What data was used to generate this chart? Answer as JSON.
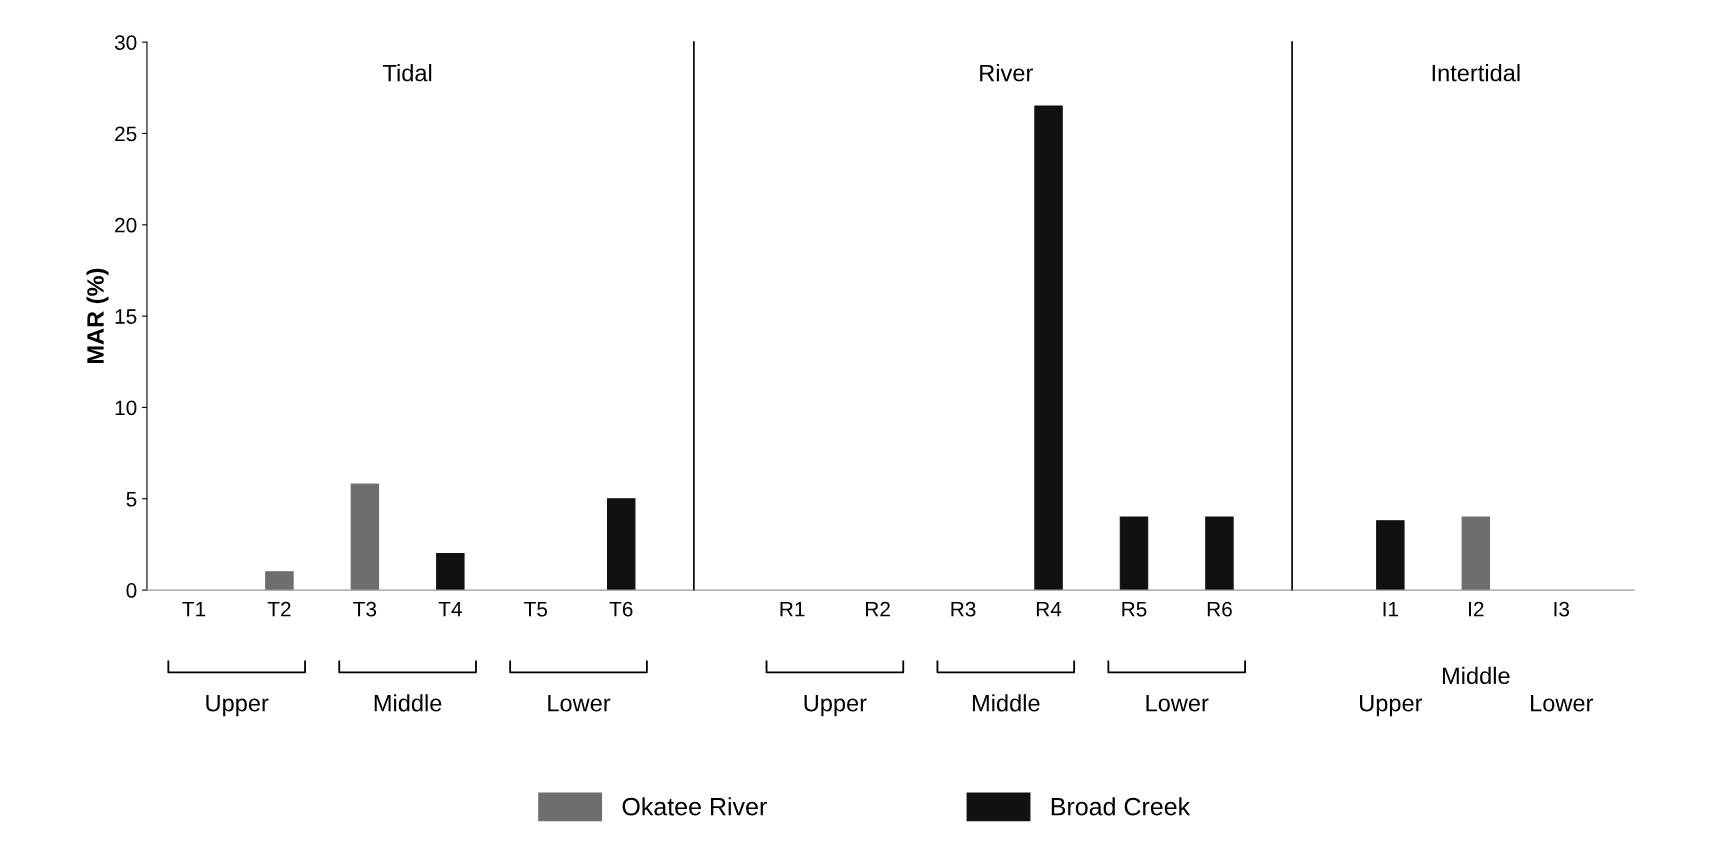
{
  "chart_data": [
    {
      "type": "bar",
      "title": "Tidal",
      "ylabel": "MAR (%)",
      "categories": [
        "T1",
        "T2",
        "T3",
        "T4",
        "T5",
        "T6"
      ],
      "series": [
        {
          "name": "Okatee River",
          "color": "#6e6e6e",
          "values": [
            null,
            1,
            5.8,
            null,
            null,
            null
          ]
        },
        {
          "name": "Broad Creek",
          "color": "#111111",
          "values": [
            null,
            null,
            null,
            2,
            null,
            5
          ]
        }
      ],
      "ylim": [
        0,
        30
      ],
      "yticks": [
        0,
        5,
        10,
        15,
        20,
        25,
        30
      ],
      "annotations": [
        "Upper",
        "Middle",
        "Lower"
      ],
      "legend": "bottom"
    },
    {
      "type": "bar",
      "title": "River",
      "categories": [
        "R1",
        "R2",
        "R3",
        "R4",
        "R5",
        "R6"
      ],
      "series": [
        {
          "color": "#111111",
          "values": [
            null,
            null,
            null,
            26.5,
            4,
            4
          ]
        }
      ],
      "ylim": [
        0,
        30
      ],
      "tick_labels": "x",
      "annotations": [
        "Upper",
        "Middle",
        "Lower"
      ]
    },
    {
      "type": "bar",
      "title": "Intertidal",
      "categories": [
        "I1",
        "I2",
        "I3"
      ],
      "series": [
        {
          "color": "#6e6e6e",
          "values": [
            null,
            4,
            null
          ]
        },
        {
          "color": "#111111",
          "values": [
            3.8,
            null,
            null
          ]
        }
      ],
      "ylim": [
        0,
        30
      ],
      "tick_labels": "x",
      "annotations": [
        "Upper",
        "Middle",
        "Lower"
      ]
    }
  ]
}
